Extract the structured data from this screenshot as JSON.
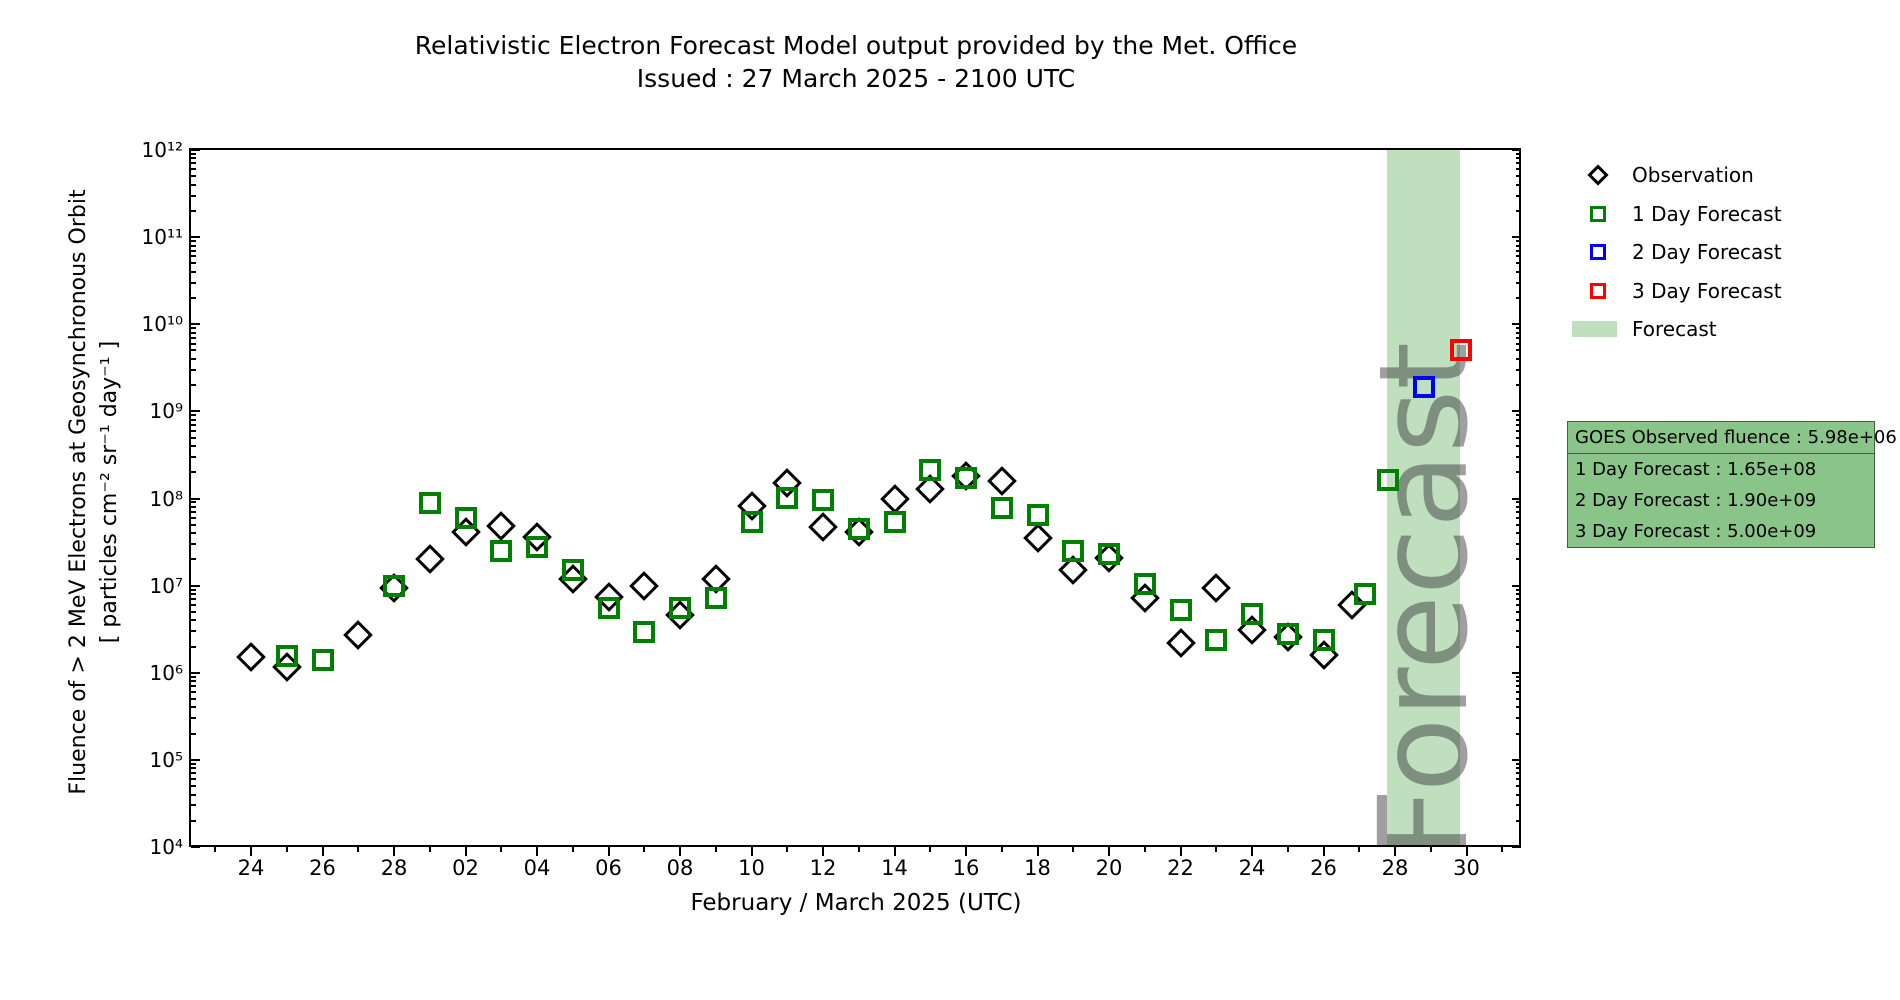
{
  "figure": {
    "title_line1": "Relativistic Electron Forecast Model output provided by the Met. Office",
    "title_line2": "Issued : 27 March 2025 - 2100 UTC",
    "xlabel": "February / March 2025 (UTC)",
    "ylabel_line1": "Fluence of > 2 MeV Electrons at Geosynchronous Orbit",
    "ylabel_line2": "[ particles cm⁻² sr⁻¹ day⁻¹ ]"
  },
  "legend": {
    "entries": [
      {
        "label": "Observation",
        "marker": "diamond-outline",
        "color": "#000000"
      },
      {
        "label": "1 Day Forecast",
        "marker": "square-outline",
        "color": "#008000"
      },
      {
        "label": "2 Day Forecast",
        "marker": "square-outline",
        "color": "#0000ff"
      },
      {
        "label": "3 Day Forecast",
        "marker": "square-outline",
        "color": "#ff0000"
      },
      {
        "label": "Forecast",
        "marker": "band-patch",
        "color": "rgba(0,128,0,0.25)"
      }
    ]
  },
  "info_box": {
    "lines": [
      "GOES Observed fluence : 5.98e+06",
      "1 Day Forecast : 1.65e+08",
      "2 Day Forecast : 1.90e+09",
      "3 Day Forecast : 5.00e+09"
    ],
    "fill_color": "#89c489",
    "border_color": "#44613f"
  },
  "watermark": "Forecast",
  "colors": {
    "observation": "#000000",
    "forecast_1day": "#008000",
    "forecast_2day": "#0000ff",
    "forecast_3day": "#ff0000",
    "forecast_band": "rgba(0,128,0,0.25)",
    "watermark": "rgba(64,64,64,0.5)"
  },
  "chart_data": {
    "type": "scatter",
    "title": "Relativistic Electron Forecast Model output provided by the Met. Office — Issued : 27 March 2025 - 2100 UTC",
    "xlabel": "February / March 2025 (UTC)",
    "ylabel": "Fluence of > 2 MeV Electrons at Geosynchronous Orbit [ particles cm⁻² sr⁻¹ day⁻¹ ]",
    "x_unit": "days since 2025-02-24 00:00 UTC",
    "x_range_days": [
      -1.7,
      35.5
    ],
    "y_scale": "log",
    "y_range": [
      10000,
      1000000000000
    ],
    "grid": false,
    "legend_position": "outside upper right",
    "x_major_ticks": [
      {
        "day": 0,
        "label": "24"
      },
      {
        "day": 2,
        "label": "26"
      },
      {
        "day": 4,
        "label": "28"
      },
      {
        "day": 6,
        "label": "02"
      },
      {
        "day": 8,
        "label": "04"
      },
      {
        "day": 10,
        "label": "06"
      },
      {
        "day": 12,
        "label": "08"
      },
      {
        "day": 14,
        "label": "10"
      },
      {
        "day": 16,
        "label": "12"
      },
      {
        "day": 18,
        "label": "14"
      },
      {
        "day": 20,
        "label": "16"
      },
      {
        "day": 22,
        "label": "18"
      },
      {
        "day": 24,
        "label": "20"
      },
      {
        "day": 26,
        "label": "22"
      },
      {
        "day": 28,
        "label": "24"
      },
      {
        "day": 30,
        "label": "26"
      },
      {
        "day": 32,
        "label": "28"
      },
      {
        "day": 34,
        "label": "30"
      }
    ],
    "y_major_ticks": [
      {
        "exp": 12,
        "label": "10¹²"
      },
      {
        "exp": 11,
        "label": "10¹¹"
      },
      {
        "exp": 10,
        "label": "10¹⁰"
      },
      {
        "exp": 9,
        "label": "10⁹"
      },
      {
        "exp": 8,
        "label": "10⁸"
      },
      {
        "exp": 7,
        "label": "10⁷"
      },
      {
        "exp": 6,
        "label": "10⁶"
      },
      {
        "exp": 5,
        "label": "10⁵"
      },
      {
        "exp": 4,
        "label": "10⁴"
      }
    ],
    "series": [
      {
        "name": "Observation",
        "marker": "diamond",
        "color": "#000000",
        "points": [
          [
            0,
            1500000
          ],
          [
            1,
            1150000
          ],
          [
            3,
            2700000
          ],
          [
            4,
            9300000
          ],
          [
            5,
            20000000
          ],
          [
            6,
            41000000
          ],
          [
            7,
            48000000
          ],
          [
            8,
            36000000
          ],
          [
            9,
            12000000
          ],
          [
            10,
            7400000
          ],
          [
            11,
            9800000
          ],
          [
            12,
            4600000
          ],
          [
            13,
            12000000
          ],
          [
            14,
            82000000
          ],
          [
            15,
            150000000
          ],
          [
            16,
            47000000
          ],
          [
            17,
            41000000
          ],
          [
            18,
            100000000
          ],
          [
            19,
            130000000
          ],
          [
            20,
            180000000
          ],
          [
            21,
            160000000
          ],
          [
            22,
            35000000
          ],
          [
            23,
            15000000
          ],
          [
            24,
            21000000
          ],
          [
            25,
            7200000
          ],
          [
            26,
            2200000
          ],
          [
            27,
            9300000
          ],
          [
            28,
            3100000
          ],
          [
            29,
            2600000
          ],
          [
            30,
            1600000
          ],
          [
            30.8,
            5980000
          ]
        ]
      },
      {
        "name": "1 Day Forecast",
        "marker": "square",
        "color": "#008000",
        "points": [
          [
            1,
            1550000
          ],
          [
            2,
            1400000
          ],
          [
            4,
            10000000
          ],
          [
            5,
            88000000
          ],
          [
            6,
            60000000
          ],
          [
            7,
            25000000
          ],
          [
            8,
            28000000
          ],
          [
            9,
            15000000
          ],
          [
            10,
            5600000
          ],
          [
            11,
            2900000
          ],
          [
            12,
            5600000
          ],
          [
            13,
            7300000
          ],
          [
            14,
            54000000
          ],
          [
            15,
            102000000
          ],
          [
            16,
            96000000
          ],
          [
            17,
            45000000
          ],
          [
            18,
            54000000
          ],
          [
            19,
            210000000
          ],
          [
            20,
            170000000
          ],
          [
            21,
            78000000
          ],
          [
            22,
            65000000
          ],
          [
            23,
            25000000
          ],
          [
            24,
            23000000
          ],
          [
            25,
            10500000
          ],
          [
            26,
            5200000
          ],
          [
            27,
            2400000
          ],
          [
            28,
            4700000
          ],
          [
            29,
            2750000
          ],
          [
            30,
            2400000
          ],
          [
            31.15,
            8000000
          ],
          [
            31.8,
            165000000
          ]
        ]
      },
      {
        "name": "2 Day Forecast",
        "marker": "square",
        "color": "#0000ff",
        "points": [
          [
            32.8,
            1900000000
          ]
        ]
      },
      {
        "name": "3 Day Forecast",
        "marker": "square",
        "color": "#ff0000",
        "points": [
          [
            33.85,
            5000000000
          ]
        ]
      }
    ],
    "forecast_band": {
      "x0_day": 31.78,
      "x1_day": 33.82,
      "label": "Forecast"
    }
  }
}
